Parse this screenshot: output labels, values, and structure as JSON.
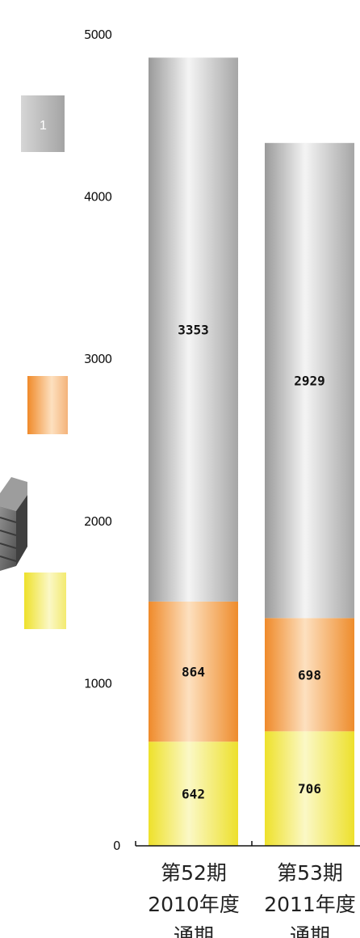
{
  "chart_data": {
    "type": "bar",
    "stacked": true,
    "categories": [
      [
        "第52期",
        "2010年度",
        "通期"
      ],
      [
        "第53期",
        "2011年度",
        "通期"
      ]
    ],
    "series": [
      {
        "values": [
          642,
          706
        ],
        "color": "#f2ec3c"
      },
      {
        "values": [
          864,
          698
        ],
        "color": "#f0953a"
      },
      {
        "values": [
          3353,
          2929
        ],
        "color": "#b9b9b9"
      }
    ],
    "y_ticks": [
      0,
      1000,
      2000,
      3000,
      4000,
      5000
    ],
    "ylim": [
      0,
      5000
    ],
    "grid": false,
    "legend": {
      "placement": "left",
      "swatch_colors": [
        "#b9b9b9",
        "#f0953a",
        "#f2ec3c"
      ],
      "swatch_texts": [
        "1",
        "",
        ""
      ]
    }
  }
}
